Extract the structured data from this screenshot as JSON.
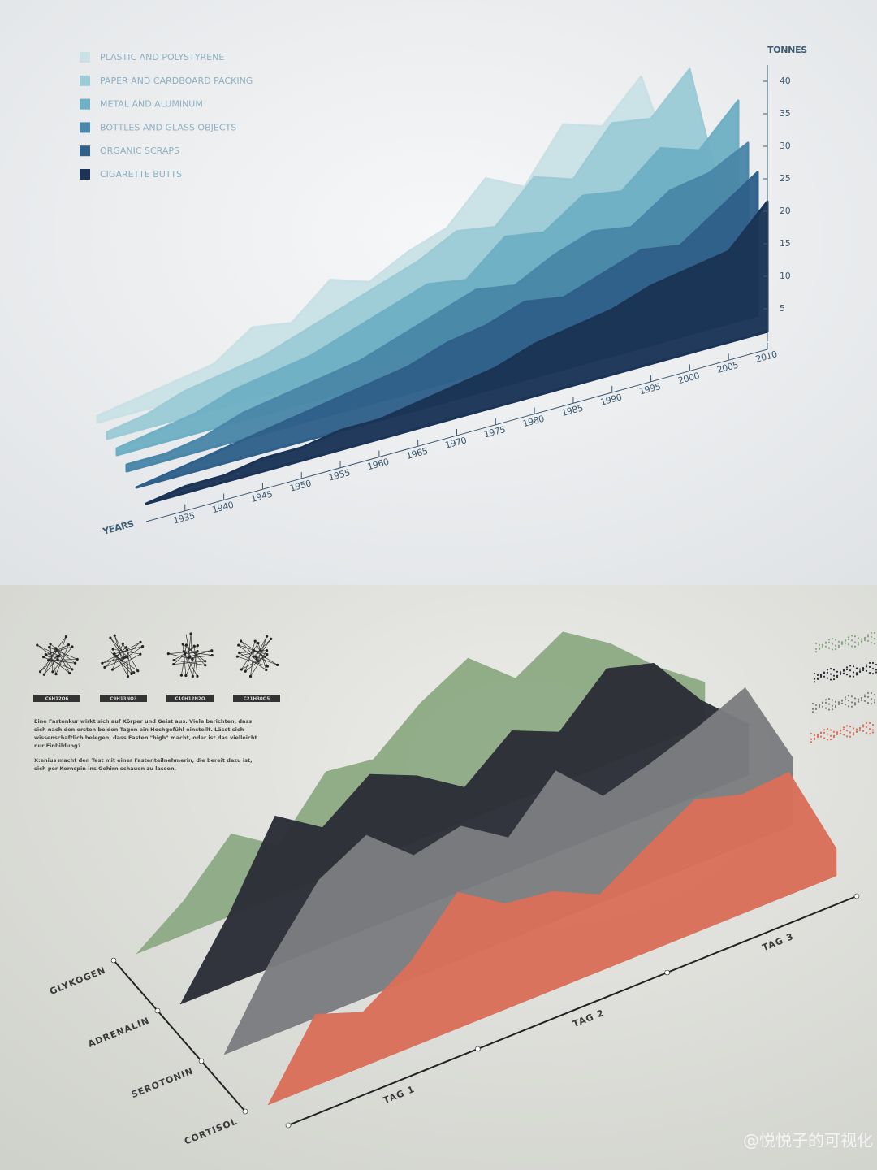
{
  "chart_data": [
    {
      "type": "ridge",
      "x_axis_label": "YEARS",
      "y_axis_label": "TONNES",
      "x": [
        1930,
        1935,
        1940,
        1945,
        1950,
        1955,
        1960,
        1965,
        1970,
        1975,
        1980,
        1985,
        1990,
        1995,
        2000,
        2005,
        2010
      ],
      "xlim": [
        1930,
        2010
      ],
      "xticks": [
        1935,
        1940,
        1945,
        1950,
        1955,
        1960,
        1965,
        1970,
        1975,
        1980,
        1985,
        1990,
        1995,
        2000,
        2005,
        2010
      ],
      "ylim": [
        0,
        40
      ],
      "yticks": [
        5,
        10,
        15,
        20,
        25,
        30,
        35,
        40
      ],
      "series": [
        {
          "name": "PLASTIC AND POLYSTYRENE",
          "color": "#c9e1e5",
          "values": [
            1,
            2,
            3,
            4,
            8,
            7,
            12,
            10,
            13,
            15,
            21,
            18,
            26,
            24,
            30,
            12,
            4
          ]
        },
        {
          "name": "PAPER AND CARDBOARD PACKING",
          "color": "#9ccbd6",
          "values": [
            1,
            2,
            4,
            5,
            6,
            8,
            10,
            12,
            14,
            17,
            16,
            22,
            20,
            27,
            26,
            32,
            6
          ]
        },
        {
          "name": "METAL AND ALUMINUM",
          "color": "#70b0c4",
          "values": [
            1,
            2,
            3,
            5,
            6,
            7,
            9,
            11,
            13,
            12,
            17,
            16,
            20,
            19,
            24,
            22,
            28
          ]
        },
        {
          "name": "BOTTLES AND GLASS OBJECTS",
          "color": "#4a87a8",
          "values": [
            1,
            1,
            2,
            4,
            5,
            6,
            7,
            9,
            11,
            13,
            12,
            15,
            17,
            16,
            20,
            21,
            24
          ]
        },
        {
          "name": "ORGANIC SCRAPS",
          "color": "#2f6089",
          "values": [
            0,
            1,
            2,
            3,
            4,
            5,
            6,
            7,
            9,
            10,
            12,
            11,
            13,
            15,
            14,
            18,
            22
          ]
        },
        {
          "name": "CIGARETTE BUTTS",
          "color": "#1b3456",
          "values": [
            0,
            1,
            1,
            2,
            2,
            3,
            3,
            4,
            5,
            6,
            8,
            9,
            10,
            12,
            13,
            14,
            20
          ]
        }
      ]
    },
    {
      "type": "ridge",
      "x": [
        0,
        0.25,
        0.5,
        0.75,
        1,
        1.25,
        1.5,
        1.75,
        2,
        2.25,
        2.5,
        2.75,
        3
      ],
      "xlim": [
        0,
        3
      ],
      "xticks": [
        0,
        1,
        2,
        3
      ],
      "day_labels": [
        "TAG 1",
        "TAG 2",
        "TAG 3"
      ],
      "ylim": [
        0,
        100
      ],
      "series": [
        {
          "name": "GLYKOGEN",
          "color": "#8daa85",
          "values": [
            0,
            20,
            48,
            30,
            62,
            58,
            80,
            95,
            72,
            88,
            70,
            45,
            25
          ]
        },
        {
          "name": "ADRENALIN",
          "color": "#2b2e37",
          "values": [
            0,
            40,
            88,
            70,
            90,
            78,
            60,
            82,
            70,
            96,
            88,
            55,
            30
          ]
        },
        {
          "name": "SEROTONIN",
          "color": "#7c7d80",
          "values": [
            0,
            45,
            80,
            95,
            72,
            78,
            60,
            88,
            62,
            70,
            80,
            92,
            40
          ]
        },
        {
          "name": "CORTISOL",
          "color": "#d9705a",
          "values": [
            0,
            42,
            32,
            50,
            80,
            62,
            58,
            45,
            62,
            78,
            70,
            72,
            16
          ]
        }
      ]
    }
  ],
  "molecules": [
    "C6H12O6",
    "C9H13NO3",
    "C10H12N2O",
    "C21H30O5"
  ],
  "description": [
    "Eine Fastenkur wirkt sich auf Körper und Geist aus. Viele berichten, dass",
    "sich nach den ersten beiden Tagen ein Hochgefühl einstellt. Lässt sich",
    "wissenschaftlich belegen, dass Fasten \"high\" macht, oder ist das vielleicht",
    "nur Einbildung?",
    "X:enius macht den Test mit einer Fastenteilnehmerin, die bereit dazu ist,",
    "sich per Kernspin ins Gehirn schauen zu lassen."
  ],
  "watermark": "@悦悦子的可视化"
}
